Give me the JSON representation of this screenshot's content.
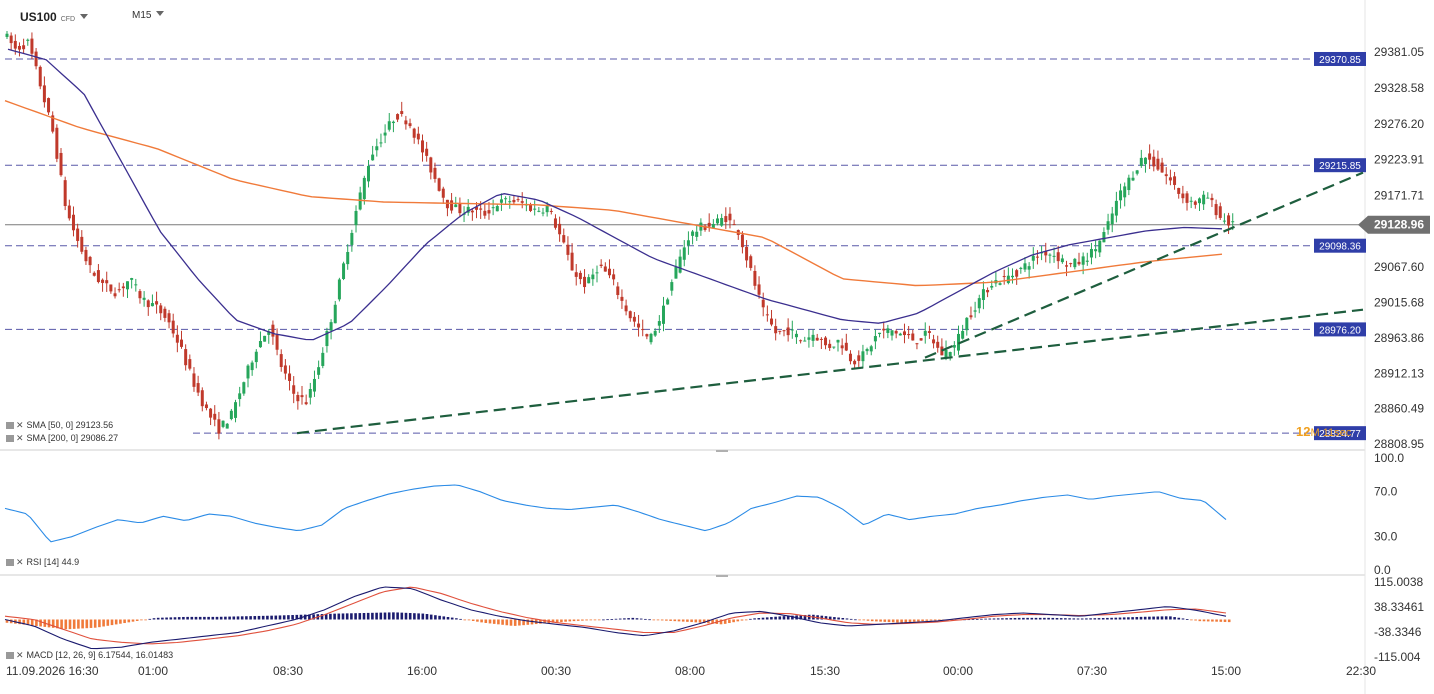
{
  "header": {
    "symbol": "US100",
    "symbol_suffix": "CFD",
    "timeframe": "M15"
  },
  "colors": {
    "up": "#26a65b",
    "down": "#c0392b",
    "sma50": "#3b2f8f",
    "sma200": "#f07a3a",
    "rsi": "#2b8be6",
    "macd_line": "#1a1a6e",
    "macd_signal": "#e0503c",
    "hist_pos": "#1c1c6e",
    "hist_neg": "#f07a3a",
    "trendline": "#1e5e3e",
    "level_line": "#3b3b9a",
    "level_label_bg": "#2f3ea8",
    "price_label_bg": "#707070"
  },
  "chart_data": {
    "type": "candlestick",
    "instrument": "US100",
    "timeframe": "M15",
    "y_axis_ticks": [
      "29381.05",
      "29328.58",
      "29276.20",
      "29223.91",
      "29171.71",
      "29067.60",
      "29015.68",
      "28963.86",
      "28912.13",
      "28860.49",
      "28808.95"
    ],
    "x_axis_ticks": [
      "11.09.2026 16:30",
      "01:00",
      "08:30",
      "16:00",
      "00:30",
      "08:00",
      "15:30",
      "00:00",
      "07:30",
      "15:00",
      "22:30"
    ],
    "current_price": "29128.96",
    "horizontal_levels": [
      "29370.85",
      "29215.85",
      "29098.36",
      "28976.20",
      "28824.77"
    ],
    "countdown": {
      "main": "12",
      "rest": "M 11sec"
    },
    "close_path": [
      29410,
      29385,
      29395,
      29330,
      29260,
      29150,
      29100,
      29060,
      29040,
      29030,
      29050,
      29020,
      29010,
      28990,
      28950,
      28900,
      28860,
      28830,
      28850,
      28900,
      28950,
      28980,
      28920,
      28880,
      28870,
      28930,
      29000,
      29080,
      29160,
      29230,
      29260,
      29290,
      29280,
      29240,
      29200,
      29160,
      29150,
      29150,
      29145,
      29160,
      29165,
      29160,
      29150,
      29155,
      29110,
      29060,
      29040,
      29070,
      29050,
      29010,
      28980,
      28960,
      29000,
      29060,
      29110,
      29125,
      29130,
      29140,
      29120,
      29060,
      29000,
      28970,
      28975,
      28960,
      28970,
      28950,
      28960,
      28930,
      28940,
      28970,
      28975,
      28968,
      28960,
      28970,
      28940,
      28950,
      28990,
      29020,
      29045,
      29050,
      29060,
      29075,
      29090,
      29085,
      29070,
      29075,
      29090,
      29120,
      29170,
      29200,
      29230,
      29215,
      29195,
      29170,
      29160,
      29170,
      29140,
      29128
    ],
    "sma50_path": [
      29385,
      29370,
      29320,
      29220,
      29120,
      29050,
      28990,
      28970,
      28960,
      28985,
      29040,
      29100,
      29145,
      29175,
      29165,
      29140,
      29110,
      29080,
      29060,
      29040,
      29020,
      29005,
      28990,
      28985,
      29000,
      29030,
      29060,
      29085,
      29100,
      29110,
      29120,
      29125,
      29123
    ],
    "sma200_path": [
      29310,
      29270,
      29240,
      29195,
      29170,
      29162,
      29160,
      29158,
      29150,
      29130,
      29110,
      29050,
      29040,
      29045,
      29060,
      29075,
      29086
    ],
    "rsi": {
      "label": "RSI [14] 44.9",
      "ticks": [
        "100.0",
        "70.0",
        "30.0",
        "0.0"
      ],
      "path": [
        55,
        50,
        25,
        30,
        38,
        45,
        42,
        48,
        44,
        50,
        48,
        42,
        38,
        35,
        40,
        55,
        62,
        68,
        72,
        75,
        76,
        70,
        62,
        58,
        55,
        54,
        56,
        58,
        52,
        45,
        40,
        35,
        42,
        55,
        60,
        66,
        65,
        55,
        40,
        50,
        45,
        48,
        50,
        55,
        58,
        62,
        65,
        67,
        63,
        66,
        68,
        70,
        64,
        62,
        45
      ]
    },
    "macd": {
      "label": "MACD [12, 26, 9] 6.17544, 16.01483",
      "ticks": [
        "115.0038",
        "38.33461",
        "-38.3346",
        "-115.004"
      ],
      "line_path": [
        0,
        -20,
        -60,
        -90,
        -85,
        -70,
        -60,
        -50,
        -40,
        -20,
        0,
        30,
        70,
        100,
        95,
        60,
        30,
        10,
        -5,
        -15,
        -25,
        -40,
        -50,
        -35,
        -10,
        20,
        25,
        10,
        -10,
        -20,
        -15,
        -10,
        -5,
        5,
        15,
        20,
        15,
        10,
        20,
        30,
        40,
        28,
        10
      ],
      "signal_path": [
        10,
        0,
        -30,
        -60,
        -70,
        -75,
        -70,
        -60,
        -50,
        -35,
        -15,
        15,
        50,
        85,
        100,
        80,
        50,
        25,
        5,
        -10,
        -20,
        -30,
        -40,
        -40,
        -20,
        5,
        20,
        18,
        5,
        -10,
        -15,
        -12,
        -8,
        0,
        10,
        15,
        15,
        12,
        15,
        22,
        30,
        32,
        20
      ],
      "hist_path": [
        -10,
        -20,
        -30,
        -25,
        -10,
        5,
        8,
        8,
        10,
        12,
        15,
        18,
        20,
        22,
        18,
        5,
        -10,
        -20,
        -12,
        -5,
        0,
        5,
        -3,
        -8,
        -15,
        3,
        10,
        15,
        5,
        -5,
        -10,
        -3,
        0,
        3,
        5,
        5,
        3,
        5,
        8,
        10,
        -5,
        -8
      ]
    },
    "indicators": [
      {
        "label": "SMA [50, 0] 29123.56",
        "color": "#3b2f8f"
      },
      {
        "label": "SMA [200, 0] 29086.27",
        "color": "#f07a3a"
      }
    ],
    "trendlines": [
      {
        "from": [
          "08:30",
          28824.77
        ],
        "to": [
          "22:30",
          29005
        ]
      },
      {
        "from": [
          "00:00",
          28935
        ],
        "to": [
          "22:30",
          29205
        ]
      }
    ]
  }
}
